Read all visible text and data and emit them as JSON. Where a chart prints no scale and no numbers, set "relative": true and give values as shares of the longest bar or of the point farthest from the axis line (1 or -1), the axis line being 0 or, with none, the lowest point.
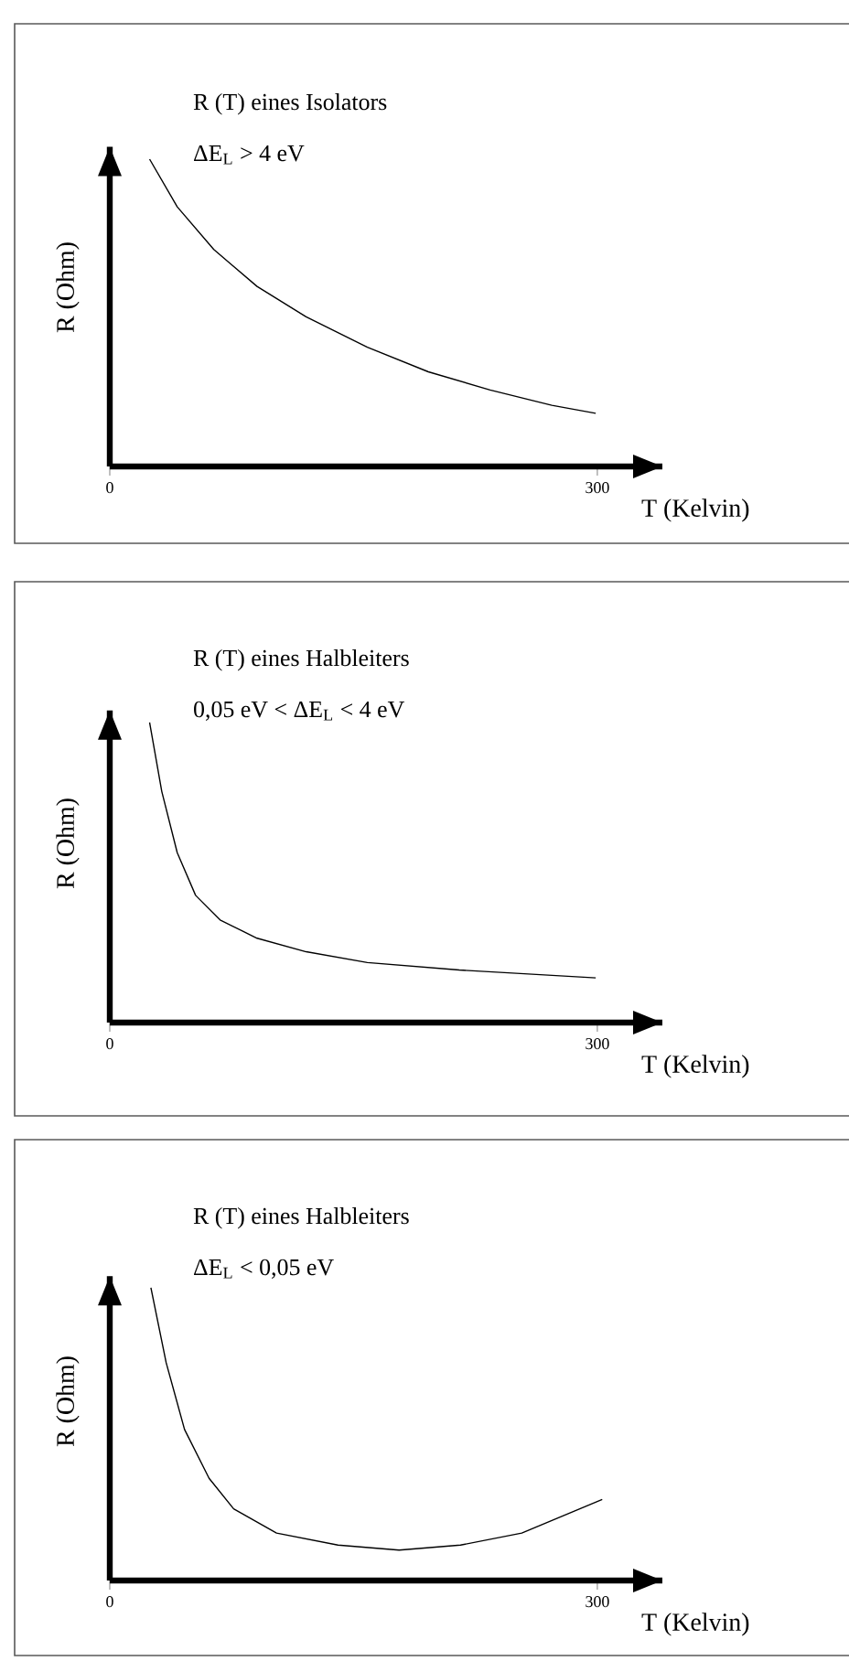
{
  "chart_data": [
    {
      "type": "line",
      "title": "R (T) eines Isolators",
      "subtitle": "ΔE$_{L}$ > 4 eV",
      "xlabel": "T (Kelvin)",
      "ylabel": "R (Ohm)",
      "relative": true,
      "xlim": [
        0,
        340
      ],
      "xticks": [
        0,
        300
      ],
      "tick_labels": "x",
      "color": "#000000",
      "x": [
        24.5,
        41.5,
        64,
        90.6,
        120.8,
        158.5,
        196,
        234,
        272,
        299
      ],
      "values": [
        1,
        0.845,
        0.706,
        0.586,
        0.487,
        0.388,
        0.308,
        0.249,
        0.199,
        0.173
      ]
    },
    {
      "type": "line",
      "title": "R (T) eines Halbleiters",
      "subtitle": "0,05 eV <  ΔE$_{L}$ <  4 eV",
      "xlabel": "T (Kelvin)",
      "ylabel": "R (Ohm)",
      "relative": true,
      "xlim": [
        0,
        340
      ],
      "xticks": [
        0,
        300
      ],
      "tick_labels": "x",
      "color": "#000000",
      "x": [
        24.5,
        32,
        41.5,
        52.8,
        67.9,
        90.6,
        120.8,
        158.5,
        215,
        299
      ],
      "values": [
        1,
        0.77,
        0.566,
        0.424,
        0.342,
        0.281,
        0.236,
        0.2,
        0.175,
        0.149
      ]
    },
    {
      "type": "line",
      "title": "R (T) eines Halbleiters",
      "subtitle": "ΔE$_{L}$ < 0,05 eV",
      "xlabel": "T (Kelvin)",
      "ylabel": "R (Ohm)",
      "relative": true,
      "xlim": [
        0,
        340
      ],
      "xticks": [
        0,
        300
      ],
      "tick_labels": "x",
      "color": "#000000",
      "x": [
        25.3,
        34.7,
        46,
        61.1,
        76.2,
        102.6,
        140.4,
        178,
        215.8,
        253.5,
        303
      ],
      "values": [
        1,
        0.744,
        0.516,
        0.349,
        0.245,
        0.162,
        0.121,
        0.104,
        0.121,
        0.162,
        0.277
      ]
    }
  ]
}
